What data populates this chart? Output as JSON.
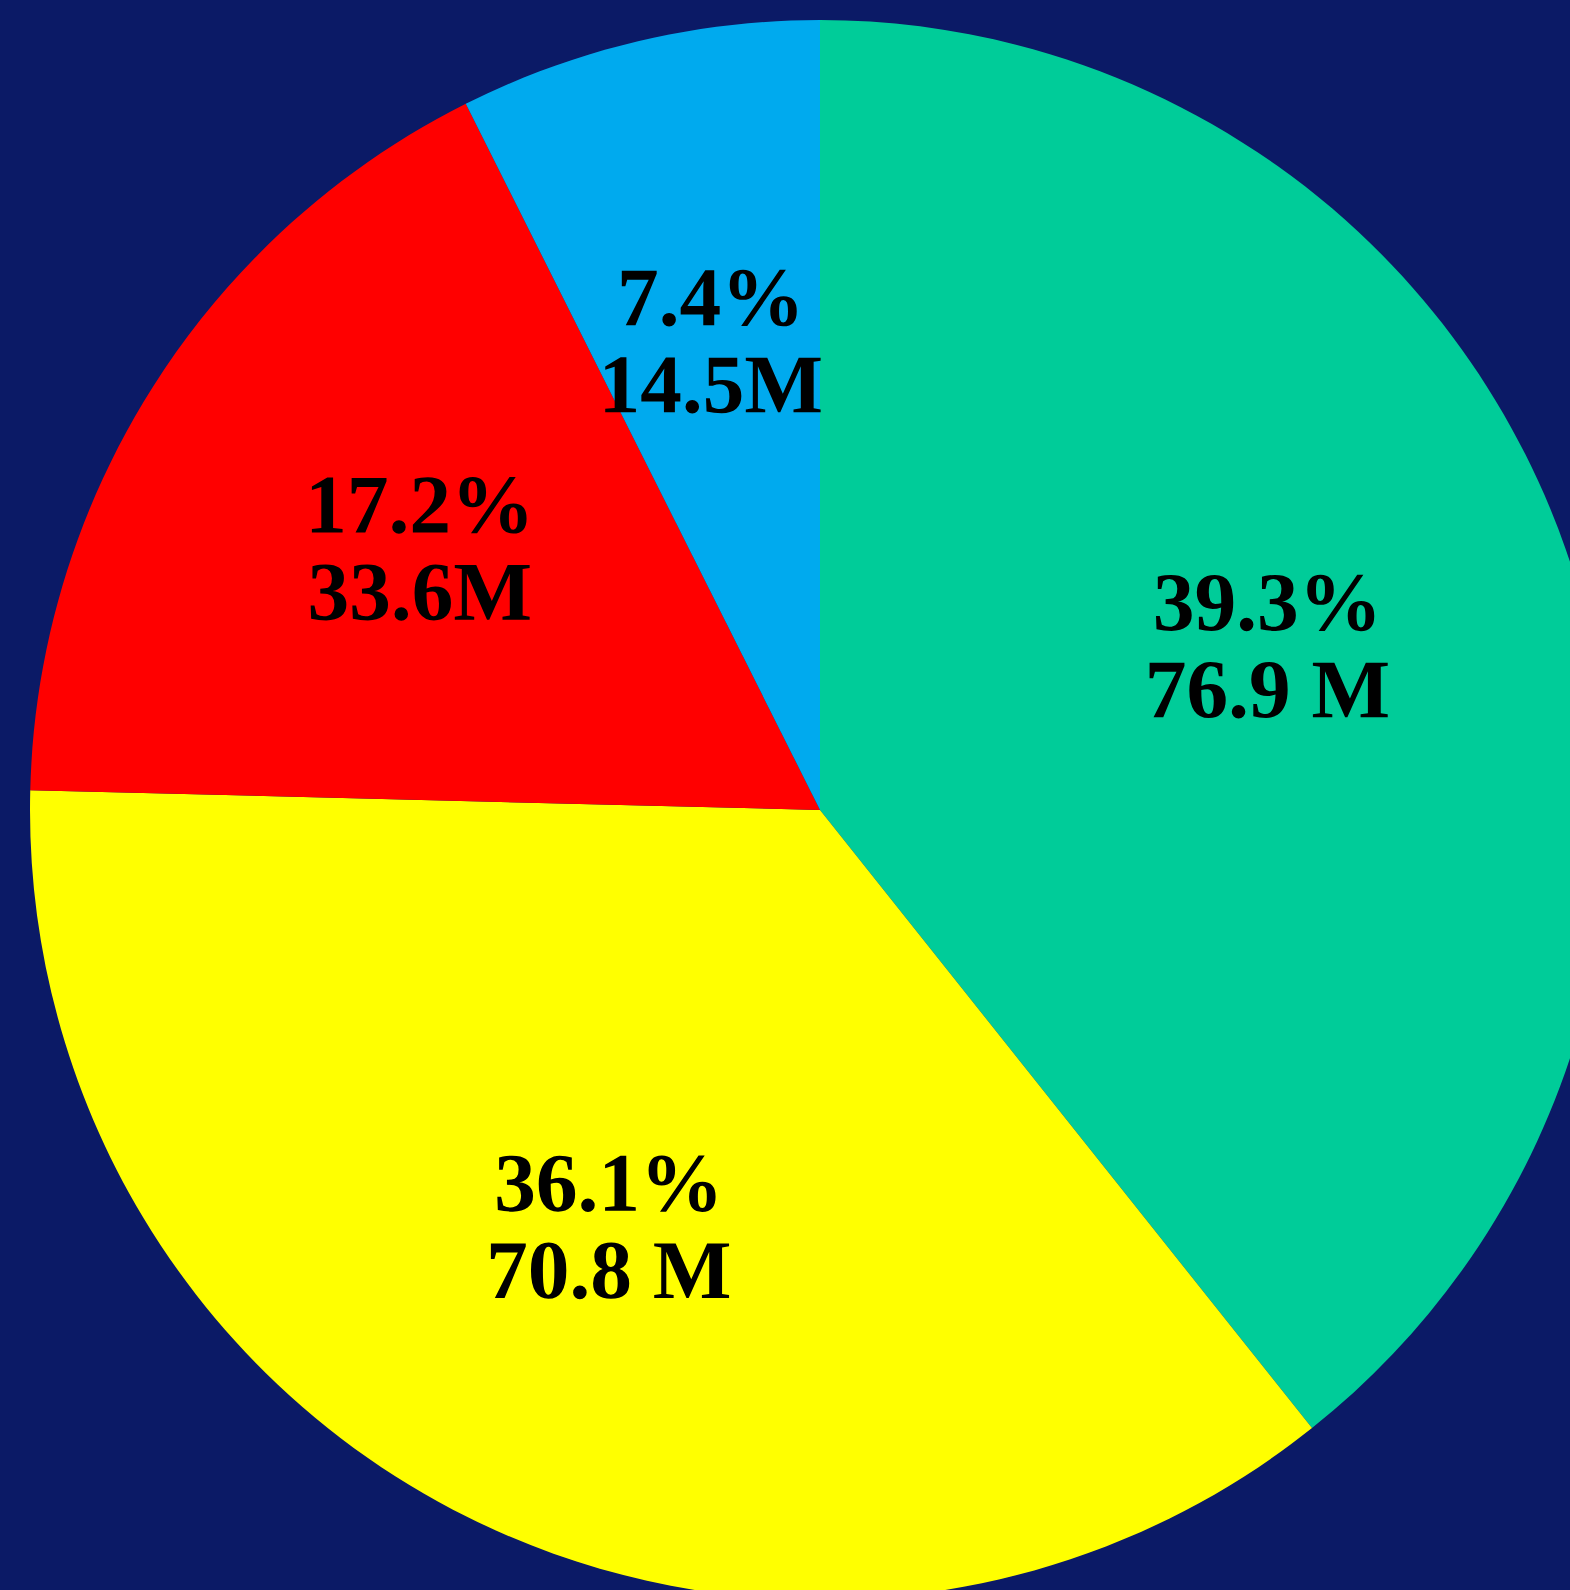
{
  "chart_data": {
    "type": "pie",
    "categories": [
      null,
      null,
      null,
      null
    ],
    "values": [
      39.3,
      36.1,
      17.2,
      7.4
    ],
    "colors": [
      "#00cc99",
      "#ffff00",
      "#ff0000",
      "#00aaee"
    ],
    "value_labels": [
      "39.3%\n76.9 M",
      "36.1%\n70.8 M",
      "17.2%\n33.6M",
      "7.4%\n14.5M"
    ]
  }
}
